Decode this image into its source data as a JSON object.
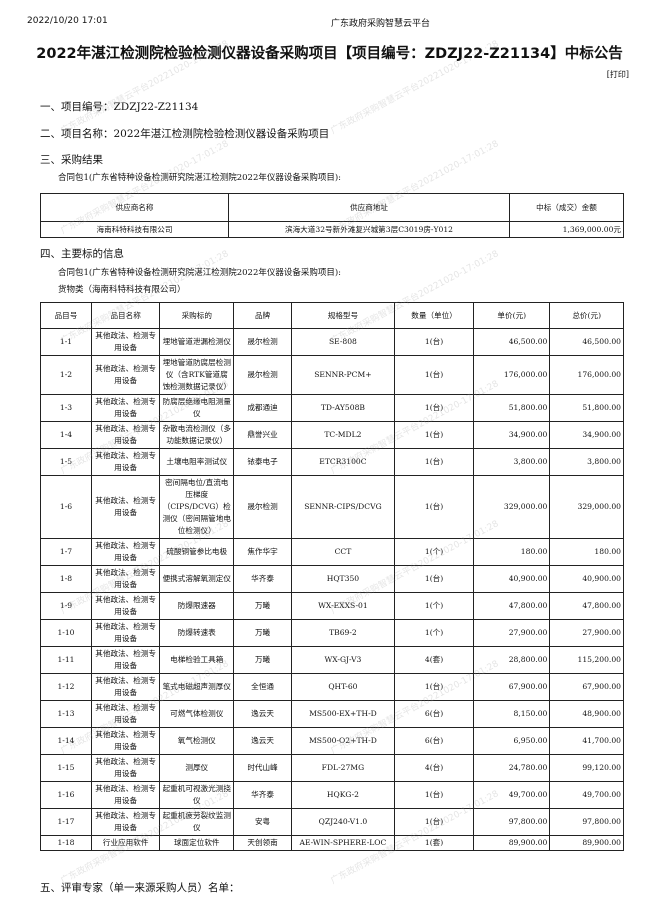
{
  "header": {
    "datetime": "2022/10/20 17:01",
    "platform": "广东政府采购智慧云平台"
  },
  "title": "2022年湛江检测院检验检测仪器设备采购项目【项目编号：ZDZJ22-Z21134】中标公告",
  "print_label": "[打印]",
  "sections": {
    "s1": "一、项目编号：ZDZJ22-Z21134",
    "s2": "二、项目名称：2022年湛江检测院检验检测仪器设备采购项目",
    "s3": "三、采购结果",
    "s3_package": "合同包1(广东省特种设备检测研究院湛江检测院2022年仪器设备采购项目):",
    "s4": "四、主要标的信息",
    "s4_package": "合同包1(广东省特种设备检测研究院湛江检测院2022年仪器设备采购项目):",
    "s4_goods": "货物类（海南科特科技有限公司）",
    "s5": "五、评审专家（单一来源采购人员）名单："
  },
  "supplier_table": {
    "headers": [
      "供应商名称",
      "供应商地址",
      "中标（成交）金额"
    ],
    "row": [
      "海南科特科技有限公司",
      "滨海大道32号新外滩复兴城第3层C3019房-Y012",
      "1,369,000.00元"
    ]
  },
  "items_table": {
    "headers": [
      "品目号",
      "品目名称",
      "采购标的",
      "品牌",
      "规格型号",
      "数量（单位）",
      "单价(元)",
      "总价(元)"
    ],
    "rows": [
      [
        "1-1",
        "其他政法、检测专用设备",
        "埋地管道泄漏检测仪",
        "晟尔检测",
        "SE-808",
        "1(台)",
        "46,500.00",
        "46,500.00"
      ],
      [
        "1-2",
        "其他政法、检测专用设备",
        "埋地管道防腐层检测仪（含RTK管道腐蚀检测数据记录仪）",
        "晟尔检测",
        "SENNR-PCM+",
        "1(台)",
        "176,000.00",
        "176,000.00"
      ],
      [
        "1-3",
        "其他政法、检测专用设备",
        "防腐层绝缘电阻测量仪",
        "成都通迪",
        "TD-AY508B",
        "1(台)",
        "51,800.00",
        "51,800.00"
      ],
      [
        "1-4",
        "其他政法、检测专用设备",
        "杂散电流检测仪（多功能数据记录仪）",
        "鼎誉兴业",
        "TC-MDL2",
        "1(台)",
        "34,900.00",
        "34,900.00"
      ],
      [
        "1-5",
        "其他政法、检测专用设备",
        "土壤电阻率测试仪",
        "铱泰电子",
        "ETCR3100C",
        "1(台)",
        "3,800.00",
        "3,800.00"
      ],
      [
        "1-6",
        "其他政法、检测专用设备",
        "密间隔电位/直流电压梯度（CIPS/DCVG）检测仪（密间隔管地电位检测仪）",
        "晟尔检测",
        "SENNR-CIPS/DCVG",
        "1(台)",
        "329,000.00",
        "329,000.00"
      ],
      [
        "1-7",
        "其他政法、检测专用设备",
        "硫酸铜管参比电极",
        "焦作华宇",
        "CCT",
        "1(个)",
        "180.00",
        "180.00"
      ],
      [
        "1-8",
        "其他政法、检测专用设备",
        "便携式溶解氧测定仪",
        "华齐泰",
        "HQT350",
        "1(台)",
        "40,900.00",
        "40,900.00"
      ],
      [
        "1-9",
        "其他政法、检测专用设备",
        "防爆限速器",
        "万曦",
        "WX-EXXS-01",
        "1(个)",
        "47,800.00",
        "47,800.00"
      ],
      [
        "1-10",
        "其他政法、检测专用设备",
        "防爆转速表",
        "万曦",
        "TB69-2",
        "1(个)",
        "27,900.00",
        "27,900.00"
      ],
      [
        "1-11",
        "其他政法、检测专用设备",
        "电梯检验工具箱",
        "万曦",
        "WX-GJ-V3",
        "4(套)",
        "28,800.00",
        "115,200.00"
      ],
      [
        "1-12",
        "其他政法、检测专用设备",
        "笔式电磁超声测厚仪",
        "全恒通",
        "QHT-60",
        "1(台)",
        "67,900.00",
        "67,900.00"
      ],
      [
        "1-13",
        "其他政法、检测专用设备",
        "可燃气体检测仪",
        "逸云天",
        "MS500-EX+TH-D",
        "6(台)",
        "8,150.00",
        "48,900.00"
      ],
      [
        "1-14",
        "其他政法、检测专用设备",
        "氧气检测仪",
        "逸云天",
        "MS500-O2+TH-D",
        "6(台)",
        "6,950.00",
        "41,700.00"
      ],
      [
        "1-15",
        "其他政法、检测专用设备",
        "测厚仪",
        "时代山峰",
        "FDL-27MG",
        "4(台)",
        "24,780.00",
        "99,120.00"
      ],
      [
        "1-16",
        "其他政法、检测专用设备",
        "起重机可视激光测挠仪",
        "华齐泰",
        "HQKG-2",
        "1(台)",
        "49,700.00",
        "49,700.00"
      ],
      [
        "1-17",
        "其他政法、检测专用设备",
        "起重机疲劳裂纹监测仪",
        "安粤",
        "QZJ240-V1.0",
        "1(台)",
        "97,800.00",
        "97,800.00"
      ],
      [
        "1-18",
        "行业应用软件",
        "球面定位软件",
        "天创领南",
        "AE-WIN-SPHERE-LOC",
        "1(套)",
        "89,900.00",
        "89,900.00"
      ]
    ]
  },
  "watermark": "广东政府采购智慧云平台20221020-17:01:28"
}
